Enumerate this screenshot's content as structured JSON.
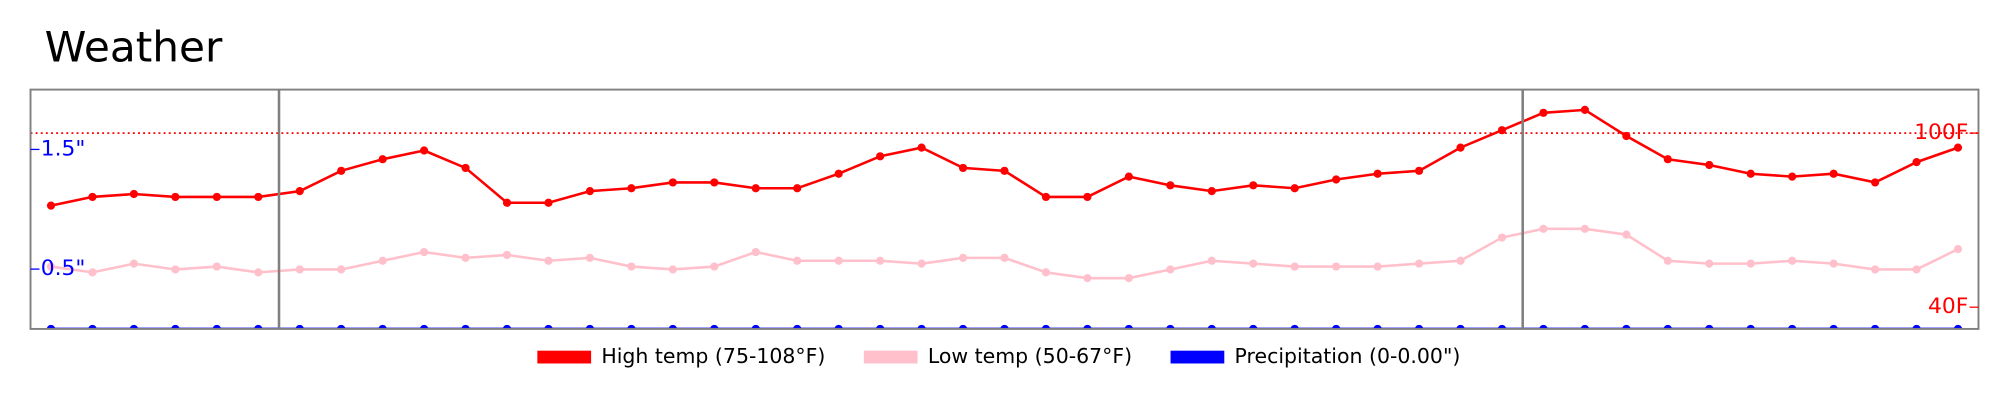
{
  "chart_data": {
    "type": "line",
    "title": "Weather",
    "categories": [
      null,
      null,
      null,
      null,
      null,
      null,
      null,
      null,
      null,
      null,
      null,
      null,
      null,
      null,
      null,
      null,
      null,
      null,
      null,
      null,
      null,
      null,
      null,
      null,
      null,
      null,
      null,
      null,
      null,
      null,
      null,
      null,
      null,
      null,
      null,
      null,
      null,
      null,
      null,
      null,
      null,
      null,
      null,
      null,
      null,
      null,
      null
    ],
    "series": [
      {
        "name": "High temp (75-108°F)",
        "color": "#ff0000",
        "values": [
          75,
          78,
          79,
          78,
          78,
          78,
          80,
          87,
          91,
          94,
          88,
          76,
          76,
          80,
          81,
          83,
          83,
          81,
          81,
          86,
          92,
          95,
          88,
          87,
          78,
          78,
          85,
          82,
          80,
          82,
          81,
          84,
          86,
          87,
          95,
          101,
          107,
          108,
          99,
          91,
          89,
          86,
          85,
          86,
          83,
          90,
          95
        ]
      },
      {
        "name": "Low temp (50-67°F)",
        "color": "#ffc0cb",
        "values": [
          54,
          52,
          55,
          53,
          54,
          52,
          53,
          53,
          56,
          59,
          57,
          58,
          56,
          57,
          54,
          53,
          54,
          59,
          56,
          56,
          56,
          55,
          57,
          57,
          52,
          50,
          50,
          53,
          56,
          55,
          54,
          54,
          54,
          55,
          56,
          64,
          67,
          67,
          65,
          56,
          55,
          55,
          56,
          55,
          53,
          53,
          60
        ]
      },
      {
        "name": "Precipitation (0-0.00\")",
        "color": "#0000ff",
        "axis": "y2",
        "values": [
          0,
          0,
          0,
          0,
          0,
          0,
          0,
          0,
          0,
          0,
          0,
          0,
          0,
          0,
          0,
          0,
          0,
          0,
          0,
          0,
          0,
          0,
          0,
          0,
          0,
          0,
          0,
          0,
          0,
          0,
          0,
          0,
          0,
          0,
          0,
          0,
          0,
          0,
          0,
          0,
          0,
          0,
          0,
          0,
          0,
          0,
          0
        ]
      }
    ],
    "ylim": [
      32.5,
      115
    ],
    "yticks": [
      {
        "value": 40,
        "label": "40F"
      },
      {
        "value": 100,
        "label": "100F"
      }
    ],
    "y2lim": [
      0,
      2
    ],
    "y2ticks": [
      {
        "value": 0.5,
        "label": "0.5\""
      },
      {
        "value": 1.5,
        "label": "1.5\""
      }
    ],
    "reference_line": {
      "value": 100,
      "color": "#ff0000"
    },
    "separators": [
      5.5,
      35.5
    ],
    "grid": false
  }
}
